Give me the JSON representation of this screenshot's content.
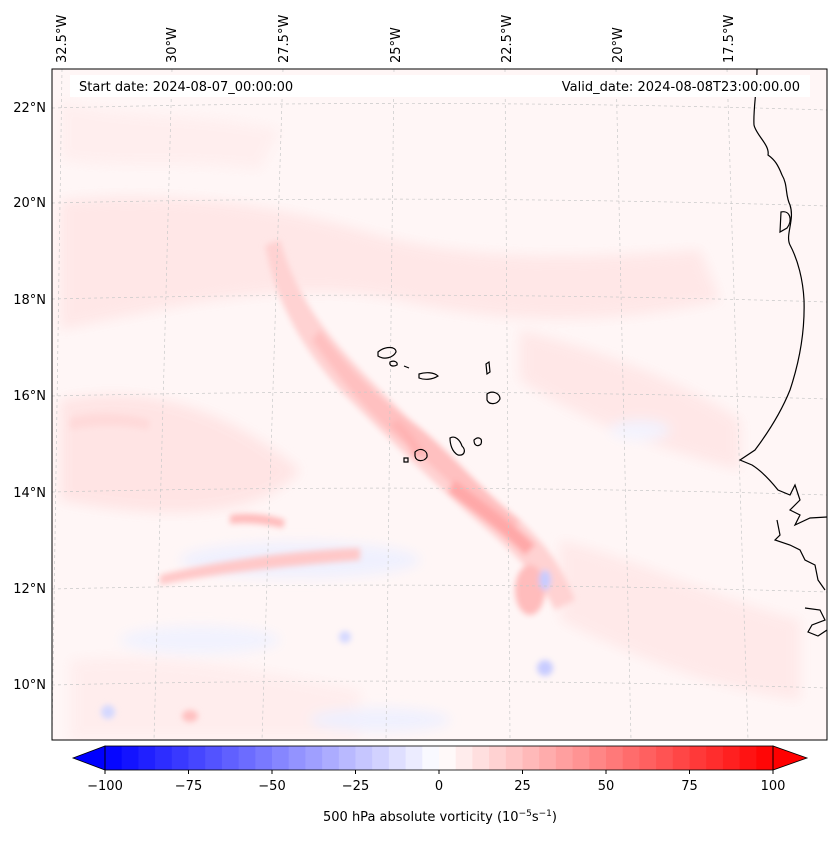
{
  "header": {
    "start_date": "Start date: 2024-08-07_00:00:00",
    "valid_date": "Valid_date: 2024-08-08T23:00:00.00"
  },
  "lon_labels": [
    "32.5°W",
    "30°W",
    "27.5°W",
    "25°W",
    "22.5°W",
    "20°W",
    "17.5°W"
  ],
  "lat_labels": [
    "22°N",
    "20°N",
    "18°N",
    "16°N",
    "14°N",
    "12°N",
    "10°N"
  ],
  "colorbar": {
    "ticks": [
      "−100",
      "−75",
      "−50",
      "−25",
      "0",
      "25",
      "50",
      "75",
      "100"
    ],
    "label_prefix": "500 hPa absolute vorticity (10",
    "label_exp1": "−5",
    "label_mid": "s",
    "label_exp2": "−1",
    "label_suffix": ")",
    "min": -100,
    "max": 100,
    "min_color": "#0000ff",
    "mid_color": "#ffffff",
    "max_color": "#ff0000"
  },
  "colors": {
    "background_field": "#fff5f5",
    "coastline": "#000000",
    "gridline": "#c8c8c8"
  }
}
